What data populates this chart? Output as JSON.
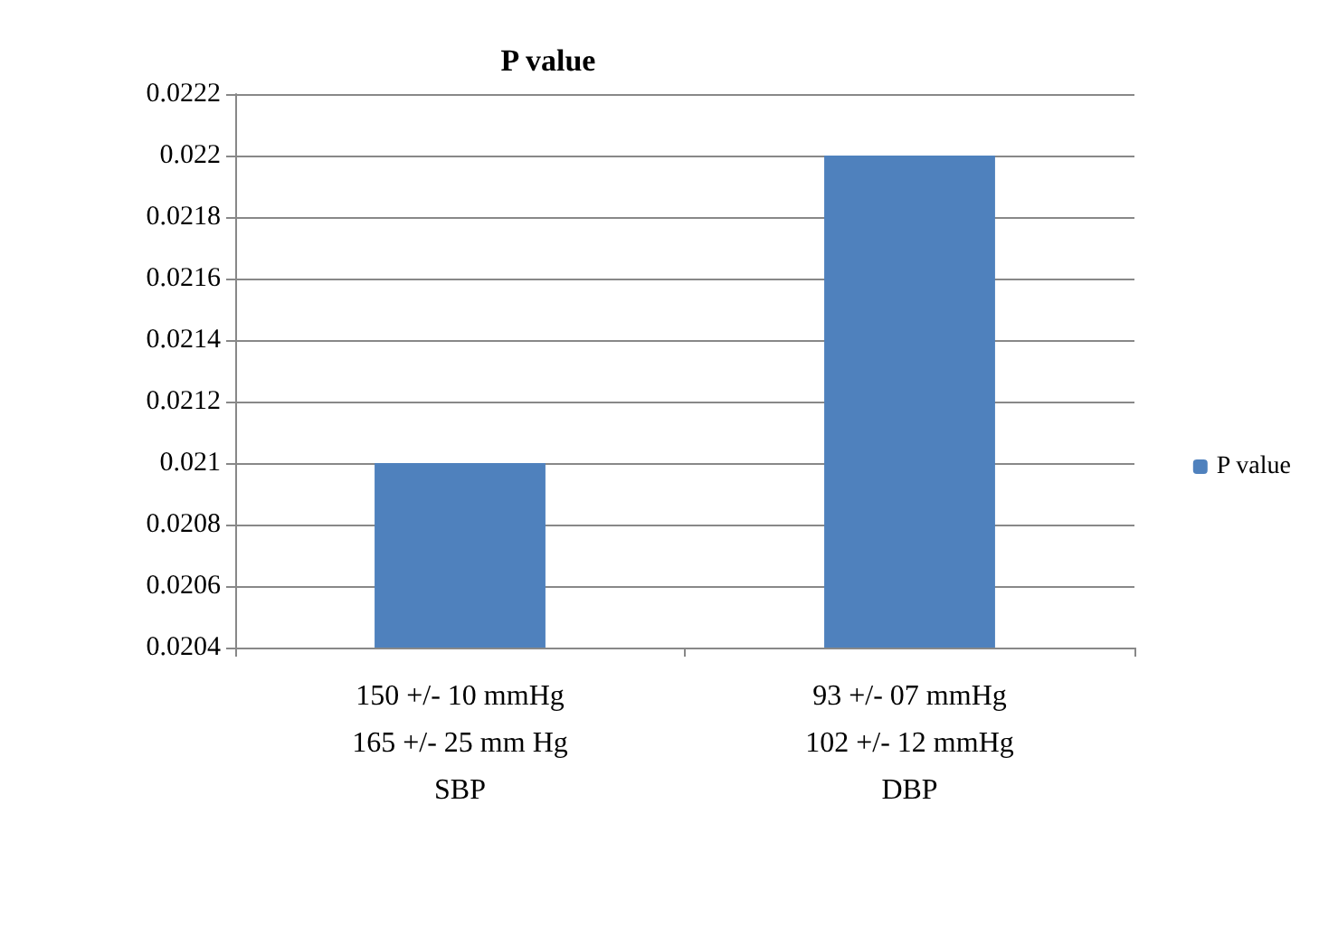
{
  "chart_data": {
    "type": "bar",
    "title": "P value",
    "categories": [
      "150 +/- 10 mmHg\n165 +/- 25 mm Hg\nSBP",
      "93 +/- 07 mmHg\n102 +/- 12 mmHg\nDBP"
    ],
    "series": [
      {
        "name": "P value",
        "color": "#4f81bd",
        "values": [
          0.021,
          0.022
        ]
      }
    ],
    "ylim": [
      0.0204,
      0.0222
    ],
    "yticks": [
      0.0204,
      0.0206,
      0.0208,
      0.021,
      0.0212,
      0.0214,
      0.0216,
      0.0218,
      0.022,
      0.0222
    ],
    "grid": "y",
    "legend": "right"
  }
}
